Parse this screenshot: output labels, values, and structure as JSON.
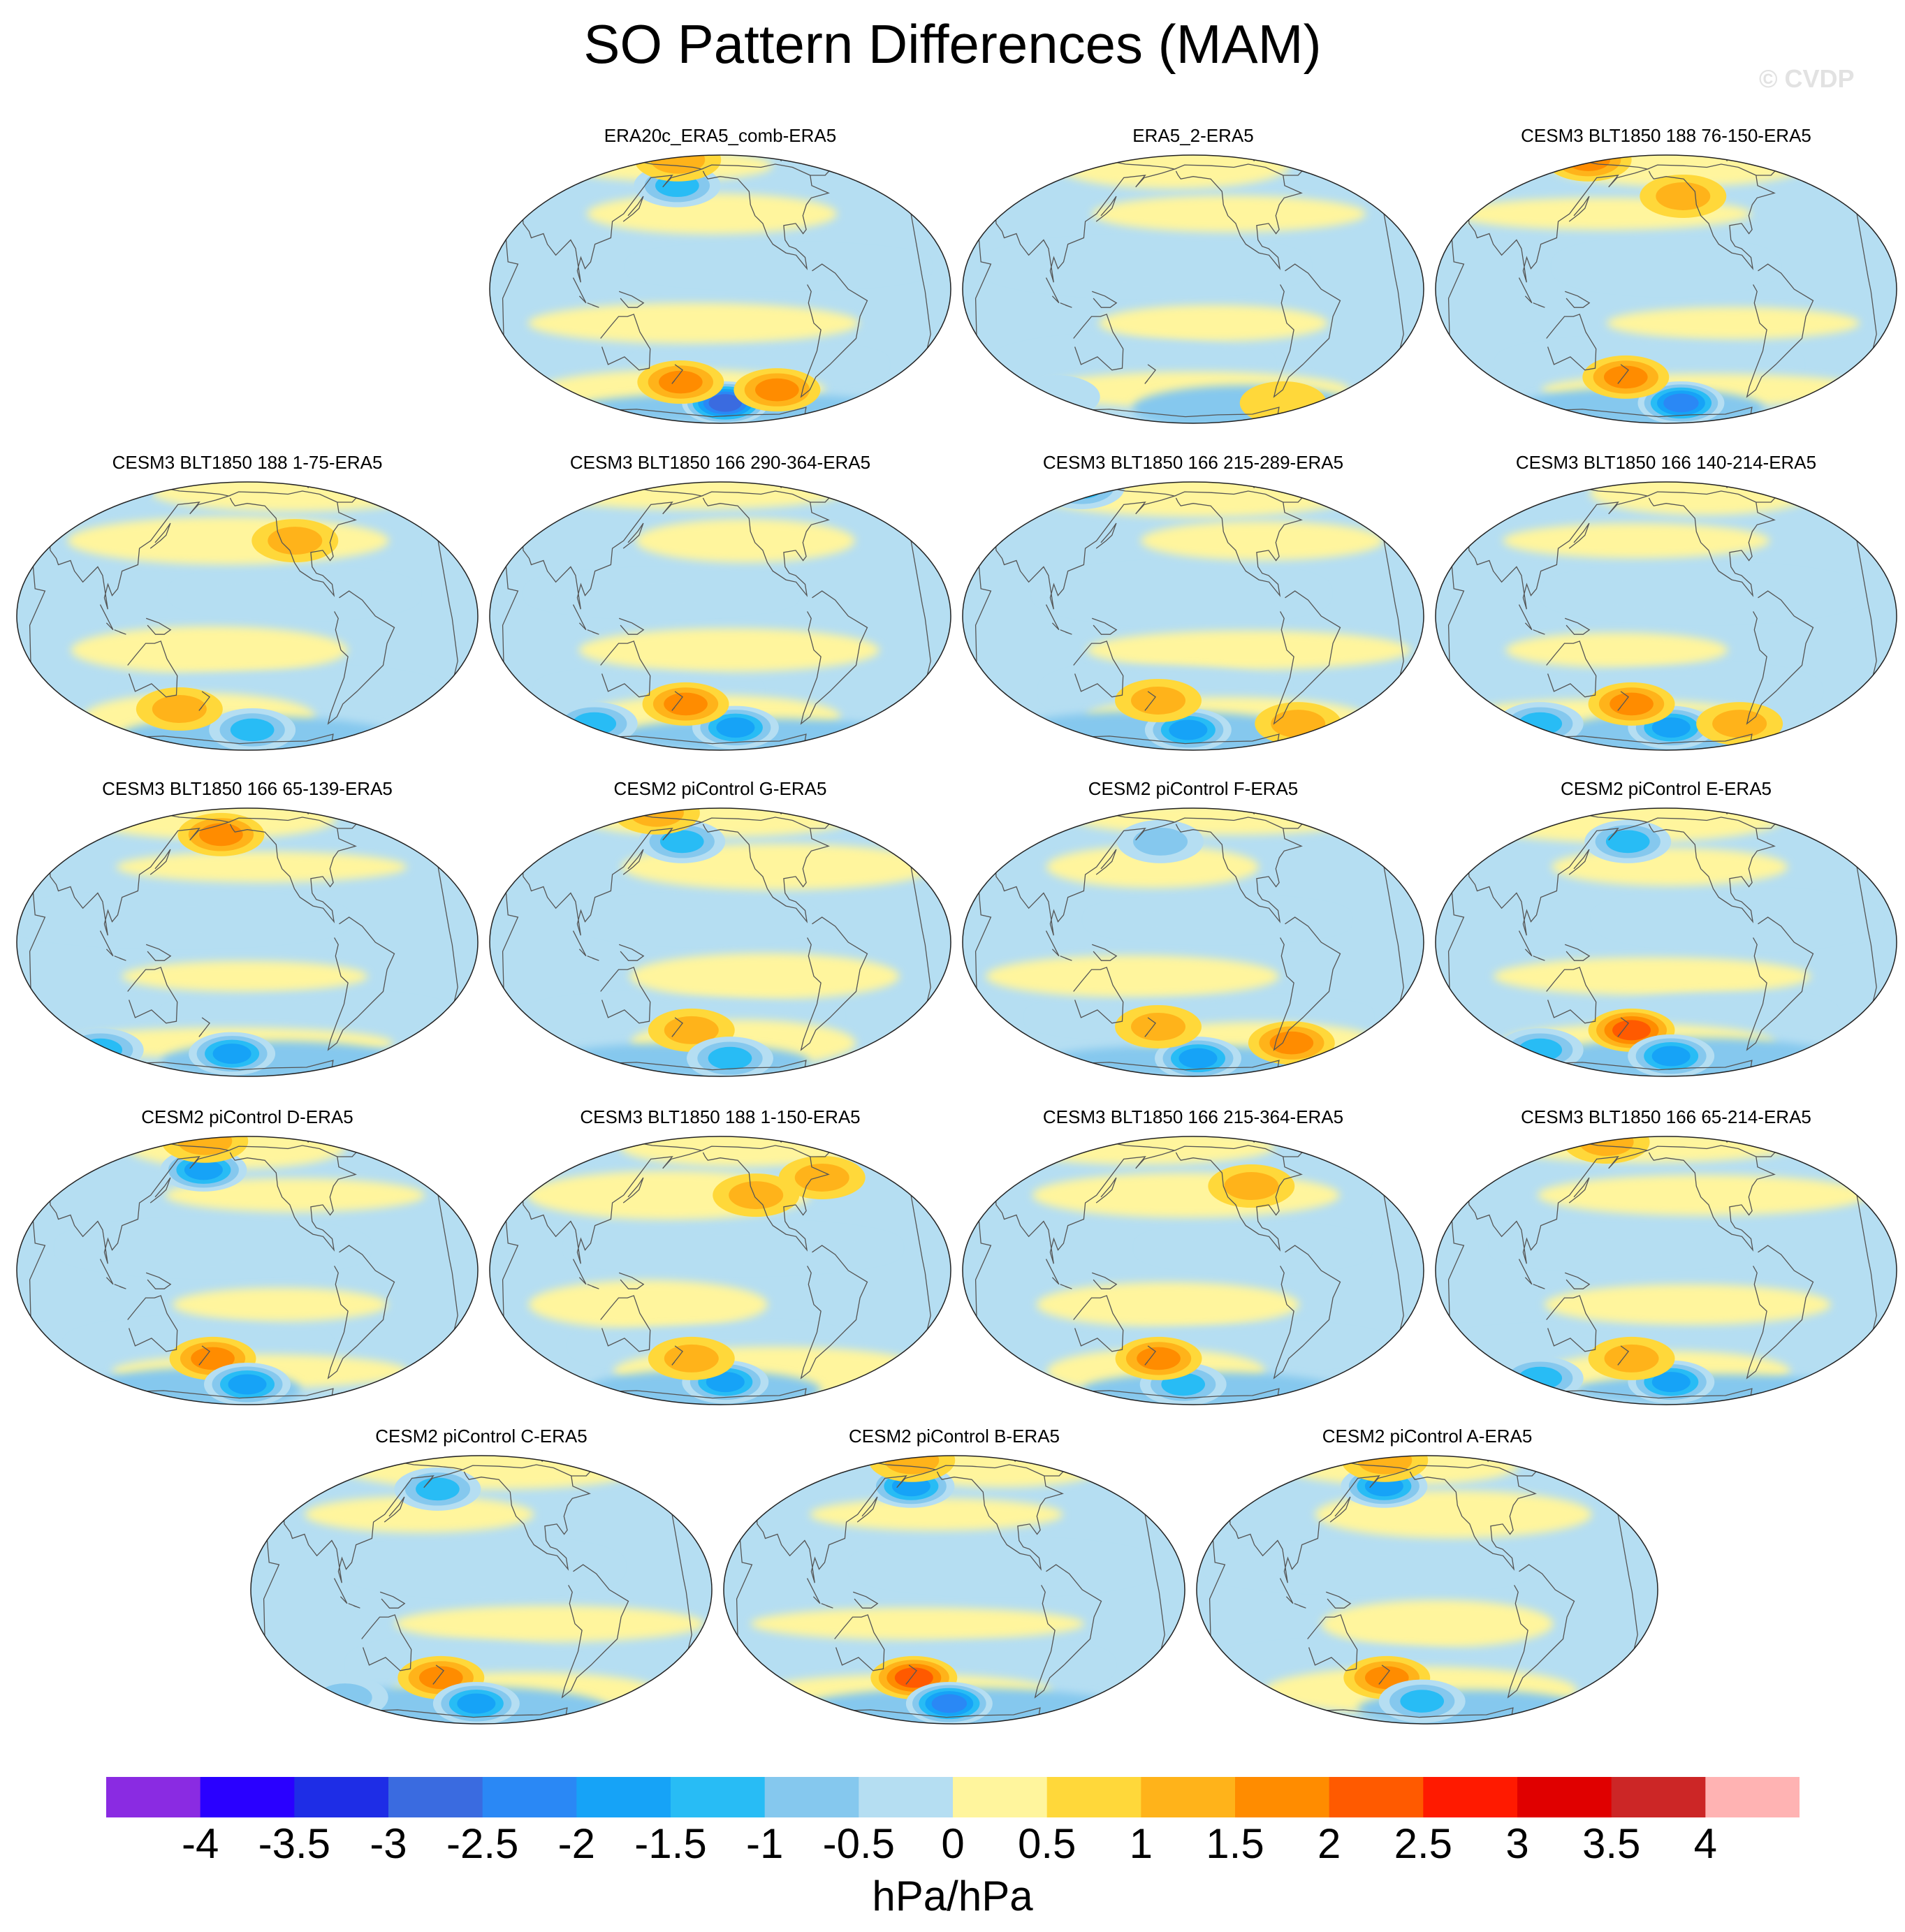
{
  "title": "SO Pattern Differences (MAM)",
  "watermark": "© CVDP",
  "chart_data": {
    "type": "map_panels",
    "title": "SO Pattern Differences (MAM)",
    "projection": "Robinson (Pacific-centered)",
    "units": "hPa/hPa",
    "panels": [
      {
        "label": "ERA20c_ERA5_comb-ERA5",
        "highlights": [
          {
            "lon": 215,
            "lat": -60,
            "value": -3
          },
          {
            "lon": 175,
            "lat": -45,
            "value": 1.5
          },
          {
            "lon": 262,
            "lat": -50,
            "value": 1.5
          },
          {
            "lon": 170,
            "lat": 52,
            "value": -1.5
          },
          {
            "lon": 150,
            "lat": 80,
            "value": 1
          }
        ]
      },
      {
        "label": "ERA5_2-ERA5",
        "highlights": [
          {
            "lon": 300,
            "lat": -60,
            "value": 0.5
          },
          {
            "lon": 80,
            "lat": -55,
            "value": -0.5
          }
        ]
      },
      {
        "label": "CESM3 BLT1850 188 76-150-ERA5",
        "highlights": [
          {
            "lon": 225,
            "lat": -60,
            "value": -2.5
          },
          {
            "lon": 175,
            "lat": -42,
            "value": 1.5
          },
          {
            "lon": 100,
            "lat": 80,
            "value": 1.5
          },
          {
            "lon": 225,
            "lat": 45,
            "value": 1
          }
        ]
      },
      {
        "label": "CESM3 BLT1850 188 1-75-ERA5",
        "highlights": [
          {
            "lon": 215,
            "lat": -60,
            "value": -1.5
          },
          {
            "lon": 150,
            "lat": -45,
            "value": 1
          },
          {
            "lon": 250,
            "lat": 35,
            "value": 1
          },
          {
            "lon": 40,
            "lat": 75,
            "value": -1
          }
        ]
      },
      {
        "label": "CESM3 BLT1850 166 290-364-ERA5",
        "highlights": [
          {
            "lon": 225,
            "lat": -58,
            "value": -2
          },
          {
            "lon": 180,
            "lat": -42,
            "value": 1.5
          },
          {
            "lon": 90,
            "lat": -55,
            "value": -1.5
          }
        ]
      },
      {
        "label": "CESM3 BLT1850 166 215-289-ERA5",
        "highlights": [
          {
            "lon": 205,
            "lat": -60,
            "value": -2
          },
          {
            "lon": 180,
            "lat": -40,
            "value": 1
          },
          {
            "lon": 310,
            "lat": -55,
            "value": 1
          },
          {
            "lon": 60,
            "lat": 78,
            "value": -1.5
          }
        ]
      },
      {
        "label": "CESM3 BLT1850 166 140-214-ERA5",
        "highlights": [
          {
            "lon": 215,
            "lat": -58,
            "value": -2
          },
          {
            "lon": 180,
            "lat": -42,
            "value": 1.5
          },
          {
            "lon": 90,
            "lat": -55,
            "value": -1.5
          },
          {
            "lon": 280,
            "lat": -55,
            "value": 1
          }
        ]
      },
      {
        "label": "CESM3 BLT1850 166 65-139-ERA5",
        "highlights": [
          {
            "lon": 195,
            "lat": -58,
            "value": -2
          },
          {
            "lon": 70,
            "lat": -55,
            "value": -1.5
          },
          {
            "lon": 185,
            "lat": 55,
            "value": 1.5
          }
        ]
      },
      {
        "label": "CESM2 piControl G-ERA5",
        "highlights": [
          {
            "lon": 175,
            "lat": 50,
            "value": -1.5
          },
          {
            "lon": 185,
            "lat": -42,
            "value": 1
          },
          {
            "lon": 220,
            "lat": -62,
            "value": -1.5
          },
          {
            "lon": 120,
            "lat": 80,
            "value": 1
          }
        ]
      },
      {
        "label": "CESM2 piControl F-ERA5",
        "highlights": [
          {
            "lon": 180,
            "lat": 50,
            "value": -1
          },
          {
            "lon": 215,
            "lat": -62,
            "value": -2
          },
          {
            "lon": 300,
            "lat": -50,
            "value": 1.5
          },
          {
            "lon": 180,
            "lat": -40,
            "value": 1
          }
        ]
      },
      {
        "label": "CESM2 piControl E-ERA5",
        "highlights": [
          {
            "lon": 175,
            "lat": 50,
            "value": -1.5
          },
          {
            "lon": 180,
            "lat": -42,
            "value": 2
          },
          {
            "lon": 215,
            "lat": -60,
            "value": -2
          },
          {
            "lon": 90,
            "lat": -55,
            "value": -1.5
          }
        ]
      },
      {
        "label": "CESM2 piControl D-ERA5",
        "highlights": [
          {
            "lon": 170,
            "lat": 50,
            "value": -2
          },
          {
            "lon": 180,
            "lat": -42,
            "value": 1.5
          },
          {
            "lon": 210,
            "lat": -60,
            "value": -2
          },
          {
            "lon": 150,
            "lat": 80,
            "value": 1
          }
        ]
      },
      {
        "label": "CESM3 BLT1850 188 1-150-ERA5",
        "highlights": [
          {
            "lon": 215,
            "lat": -58,
            "value": -2
          },
          {
            "lon": 185,
            "lat": -42,
            "value": 1
          },
          {
            "lon": 240,
            "lat": 35,
            "value": 1
          },
          {
            "lon": 300,
            "lat": 45,
            "value": 1
          }
        ]
      },
      {
        "label": "CESM3 BLT1850 166 215-364-ERA5",
        "highlights": [
          {
            "lon": 200,
            "lat": -60,
            "value": -1.5
          },
          {
            "lon": 180,
            "lat": -42,
            "value": 1.5
          },
          {
            "lon": 260,
            "lat": 40,
            "value": 1
          }
        ]
      },
      {
        "label": "CESM3 BLT1850 166 65-214-ERA5",
        "highlights": [
          {
            "lon": 215,
            "lat": -58,
            "value": -2
          },
          {
            "lon": 180,
            "lat": -42,
            "value": 1
          },
          {
            "lon": 90,
            "lat": -55,
            "value": -1.5
          },
          {
            "lon": 130,
            "lat": 78,
            "value": 1
          }
        ]
      },
      {
        "label": "CESM2 piControl C-ERA5",
        "highlights": [
          {
            "lon": 170,
            "lat": 50,
            "value": -1.5
          },
          {
            "lon": 175,
            "lat": -42,
            "value": 1.5
          },
          {
            "lon": 205,
            "lat": -60,
            "value": -2
          },
          {
            "lon": 80,
            "lat": -55,
            "value": -1
          }
        ]
      },
      {
        "label": "CESM2 piControl B-ERA5",
        "highlights": [
          {
            "lon": 170,
            "lat": 52,
            "value": -2
          },
          {
            "lon": 175,
            "lat": -42,
            "value": 2
          },
          {
            "lon": 205,
            "lat": -60,
            "value": -2.5
          },
          {
            "lon": 150,
            "lat": 80,
            "value": 1
          }
        ]
      },
      {
        "label": "CESM2 piControl A-ERA5",
        "highlights": [
          {
            "lon": 170,
            "lat": 52,
            "value": -2
          },
          {
            "lon": 175,
            "lat": -42,
            "value": 1.5
          },
          {
            "lon": 205,
            "lat": -58,
            "value": -1.5
          },
          {
            "lon": 150,
            "lat": 80,
            "value": 1
          }
        ]
      }
    ],
    "colorbar": {
      "levels": [
        "-4",
        "-3.5",
        "-3",
        "-2.5",
        "-2",
        "-1.5",
        "-1",
        "-0.5",
        "0",
        "0.5",
        "1",
        "1.5",
        "2",
        "2.5",
        "3",
        "3.5",
        "4"
      ],
      "colors": [
        "#8a2be2",
        "#2a00ff",
        "#1e2de6",
        "#3a6be0",
        "#2a88f5",
        "#16a3f7",
        "#28bcf5",
        "#85c8ee",
        "#b5def2",
        "#fff59d",
        "#ffd83a",
        "#ffb31a",
        "#ff8c00",
        "#ff5a00",
        "#ff1a00",
        "#e00000",
        "#cc2626",
        "#ffb3b3"
      ],
      "units": "hPa/hPa"
    }
  }
}
